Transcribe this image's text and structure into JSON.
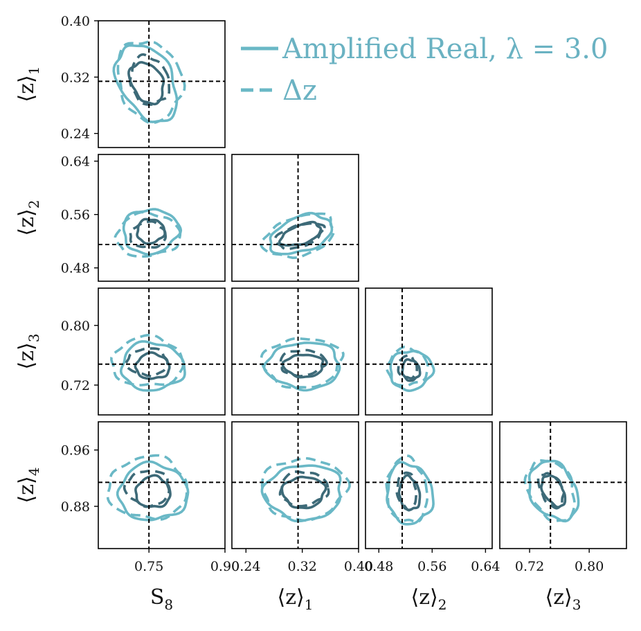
{
  "chart_data": {
    "type": "corner",
    "parameters": [
      {
        "key": "S8",
        "label": "S",
        "label_sub": "8",
        "truth": 0.75
      },
      {
        "key": "z1",
        "label": "⟨z⟩",
        "label_sub": "1",
        "truth": 0.314
      },
      {
        "key": "z2",
        "label": "⟨z⟩",
        "label_sub": "2",
        "truth": 0.515
      },
      {
        "key": "z3",
        "label": "⟨z⟩",
        "label_sub": "3",
        "truth": 0.748
      },
      {
        "key": "z4",
        "label": "⟨z⟩",
        "label_sub": "4",
        "truth": 0.914
      }
    ],
    "ranges": {
      "S8": [
        0.65,
        0.9
      ],
      "z1": [
        0.22,
        0.4
      ],
      "z2": [
        0.46,
        0.65
      ],
      "z3": [
        0.68,
        0.85
      ],
      "z4": [
        0.82,
        1.0
      ]
    },
    "x_ticks": {
      "S8": [
        "0.75",
        "0.90"
      ],
      "z1": [
        "0.24",
        "0.32",
        "0.40"
      ],
      "z2": [
        "0.48",
        "0.56",
        "0.64"
      ],
      "z3": [
        "0.72",
        "0.80"
      ]
    },
    "y_ticks": {
      "z1": [
        "0.40",
        "0.32",
        "0.24"
      ],
      "z2": [
        "0.64",
        "0.56",
        "0.48"
      ],
      "z3": [
        "0.80",
        "0.72"
      ],
      "z4": [
        "0.96",
        "0.88"
      ]
    },
    "legend": {
      "placement": "top-right",
      "entries": [
        {
          "label": "Amplified Real, λ = 3.0",
          "style": "solid"
        },
        {
          "label": "Δz",
          "style": "dashed"
        }
      ]
    },
    "colors": {
      "inner": "#3d6a78",
      "outer": "#6ab8c6",
      "truth": "#000000"
    },
    "contours": [
      {
        "x": "S8",
        "y": "z1",
        "solid": {
          "c": [
            0.746,
            0.312
          ],
          "r": [
            0.052,
            0.059
          ],
          "r1": [
            0.03,
            0.031
          ],
          "rot": 0.5
        },
        "dashed": {
          "c": [
            0.751,
            0.315
          ],
          "r": [
            0.062,
            0.058
          ],
          "r1": [
            0.037,
            0.035
          ],
          "rot": 0.3
        }
      },
      {
        "x": "S8",
        "y": "z2",
        "solid": {
          "c": [
            0.753,
            0.535
          ],
          "r": [
            0.055,
            0.033
          ],
          "r1": [
            0.027,
            0.018
          ],
          "rot": 0.1
        },
        "dashed": {
          "c": [
            0.748,
            0.529
          ],
          "r": [
            0.063,
            0.032
          ],
          "r1": [
            0.035,
            0.019
          ],
          "rot": 0.05
        }
      },
      {
        "x": "z1",
        "y": "z2",
        "solid": {
          "c": [
            0.318,
            0.53
          ],
          "r": [
            0.046,
            0.026
          ],
          "r1": [
            0.03,
            0.014
          ],
          "rot": 0.35
        },
        "dashed": {
          "c": [
            0.316,
            0.528
          ],
          "r": [
            0.052,
            0.029
          ],
          "r1": [
            0.035,
            0.016
          ],
          "rot": 0.3
        }
      },
      {
        "x": "S8",
        "y": "z3",
        "solid": {
          "c": [
            0.757,
            0.745
          ],
          "r": [
            0.062,
            0.032
          ],
          "r1": [
            0.033,
            0.017
          ],
          "rot": -0.05
        },
        "dashed": {
          "c": [
            0.747,
            0.751
          ],
          "r": [
            0.07,
            0.033
          ],
          "r1": [
            0.04,
            0.018
          ],
          "rot": 0.0
        }
      },
      {
        "x": "z1",
        "y": "z3",
        "solid": {
          "c": [
            0.322,
            0.746
          ],
          "r": [
            0.052,
            0.031
          ],
          "r1": [
            0.028,
            0.015
          ],
          "rot": 0.0
        },
        "dashed": {
          "c": [
            0.32,
            0.75
          ],
          "r": [
            0.056,
            0.033
          ],
          "r1": [
            0.032,
            0.017
          ],
          "rot": 0.05
        }
      },
      {
        "x": "z2",
        "y": "z3",
        "solid": {
          "c": [
            0.528,
            0.74
          ],
          "r": [
            0.032,
            0.026
          ],
          "r1": [
            0.013,
            0.014
          ],
          "rot": 0.2
        },
        "dashed": {
          "c": [
            0.523,
            0.744
          ],
          "r": [
            0.03,
            0.025
          ],
          "r1": [
            0.014,
            0.015
          ],
          "rot": 0.15
        }
      },
      {
        "x": "S8",
        "y": "z4",
        "solid": {
          "c": [
            0.758,
            0.9
          ],
          "r": [
            0.068,
            0.04
          ],
          "r1": [
            0.034,
            0.022
          ],
          "rot": 0.0
        },
        "dashed": {
          "c": [
            0.748,
            0.906
          ],
          "r": [
            0.078,
            0.044
          ],
          "r1": [
            0.043,
            0.025
          ],
          "rot": 0.0
        }
      },
      {
        "x": "z1",
        "y": "z4",
        "solid": {
          "c": [
            0.322,
            0.9
          ],
          "r": [
            0.055,
            0.039
          ],
          "r1": [
            0.03,
            0.022
          ],
          "rot": 0.05
        },
        "dashed": {
          "c": [
            0.322,
            0.905
          ],
          "r": [
            0.06,
            0.043
          ],
          "r1": [
            0.034,
            0.024
          ],
          "rot": 0.05
        }
      },
      {
        "x": "z2",
        "y": "z4",
        "solid": {
          "c": [
            0.526,
            0.898
          ],
          "r": [
            0.034,
            0.043
          ],
          "r1": [
            0.015,
            0.024
          ],
          "rot": 0.15
        },
        "dashed": {
          "c": [
            0.522,
            0.902
          ],
          "r": [
            0.03,
            0.046
          ],
          "r1": [
            0.014,
            0.026
          ],
          "rot": 0.1
        }
      },
      {
        "x": "z3",
        "y": "z4",
        "solid": {
          "c": [
            0.752,
            0.902
          ],
          "r": [
            0.03,
            0.044
          ],
          "r1": [
            0.013,
            0.024
          ],
          "rot": 0.5
        },
        "dashed": {
          "c": [
            0.749,
            0.903
          ],
          "r": [
            0.029,
            0.046
          ],
          "r1": [
            0.014,
            0.026
          ],
          "rot": 0.45
        }
      }
    ]
  }
}
